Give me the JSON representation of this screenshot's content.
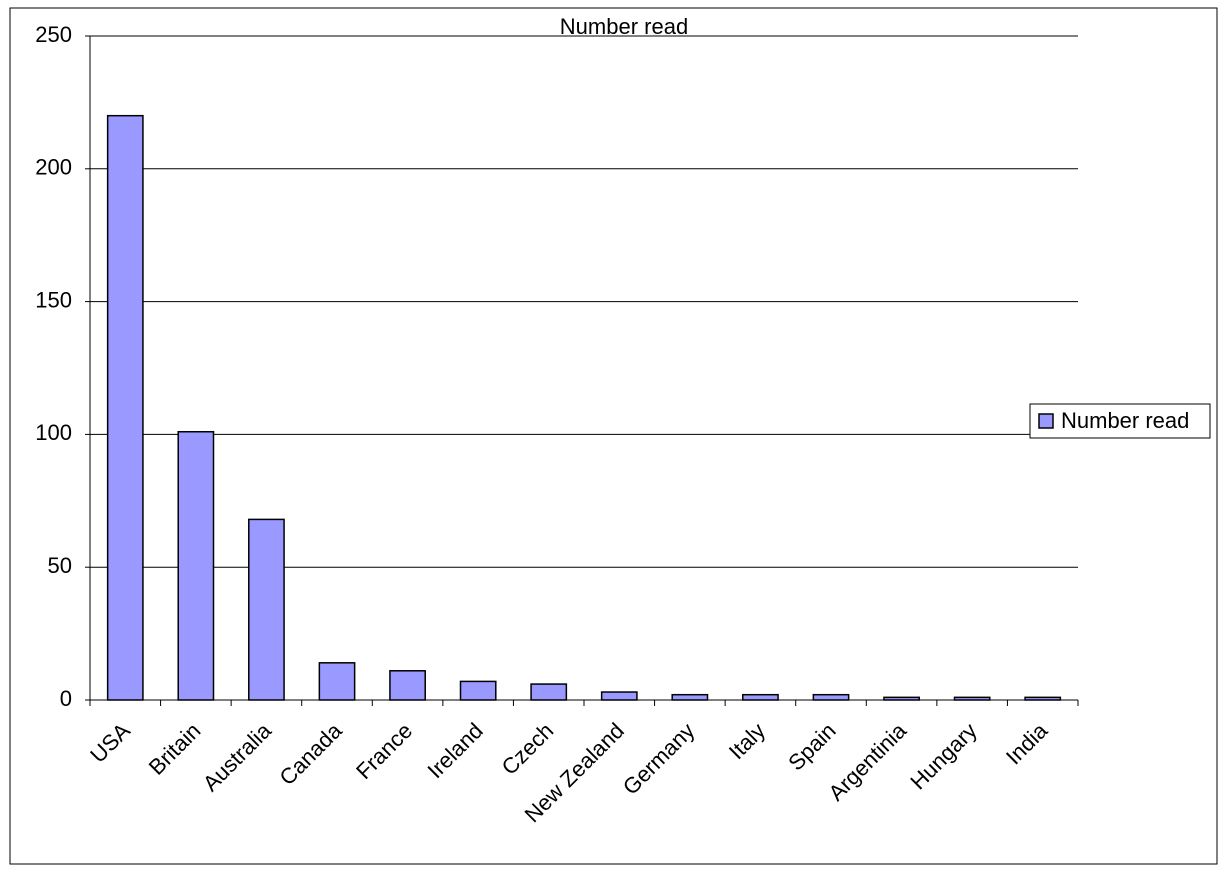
{
  "chart_data": {
    "type": "bar",
    "title": "Number read",
    "categories": [
      "USA",
      "Britain",
      "Australia",
      "Canada",
      "France",
      "Ireland",
      "Czech",
      "New Zealand",
      "Germany",
      "Italy",
      "Spain",
      "Argentinia",
      "Hungary",
      "India"
    ],
    "series": [
      {
        "name": "Number read",
        "color": "#9999ff",
        "values": [
          220,
          101,
          68,
          14,
          11,
          7,
          6,
          3,
          2,
          2,
          2,
          1,
          1,
          1
        ]
      }
    ],
    "ylim": [
      0,
      250
    ],
    "yticks": [
      0,
      50,
      100,
      150,
      200,
      250
    ],
    "grid": true,
    "legend": "right"
  }
}
